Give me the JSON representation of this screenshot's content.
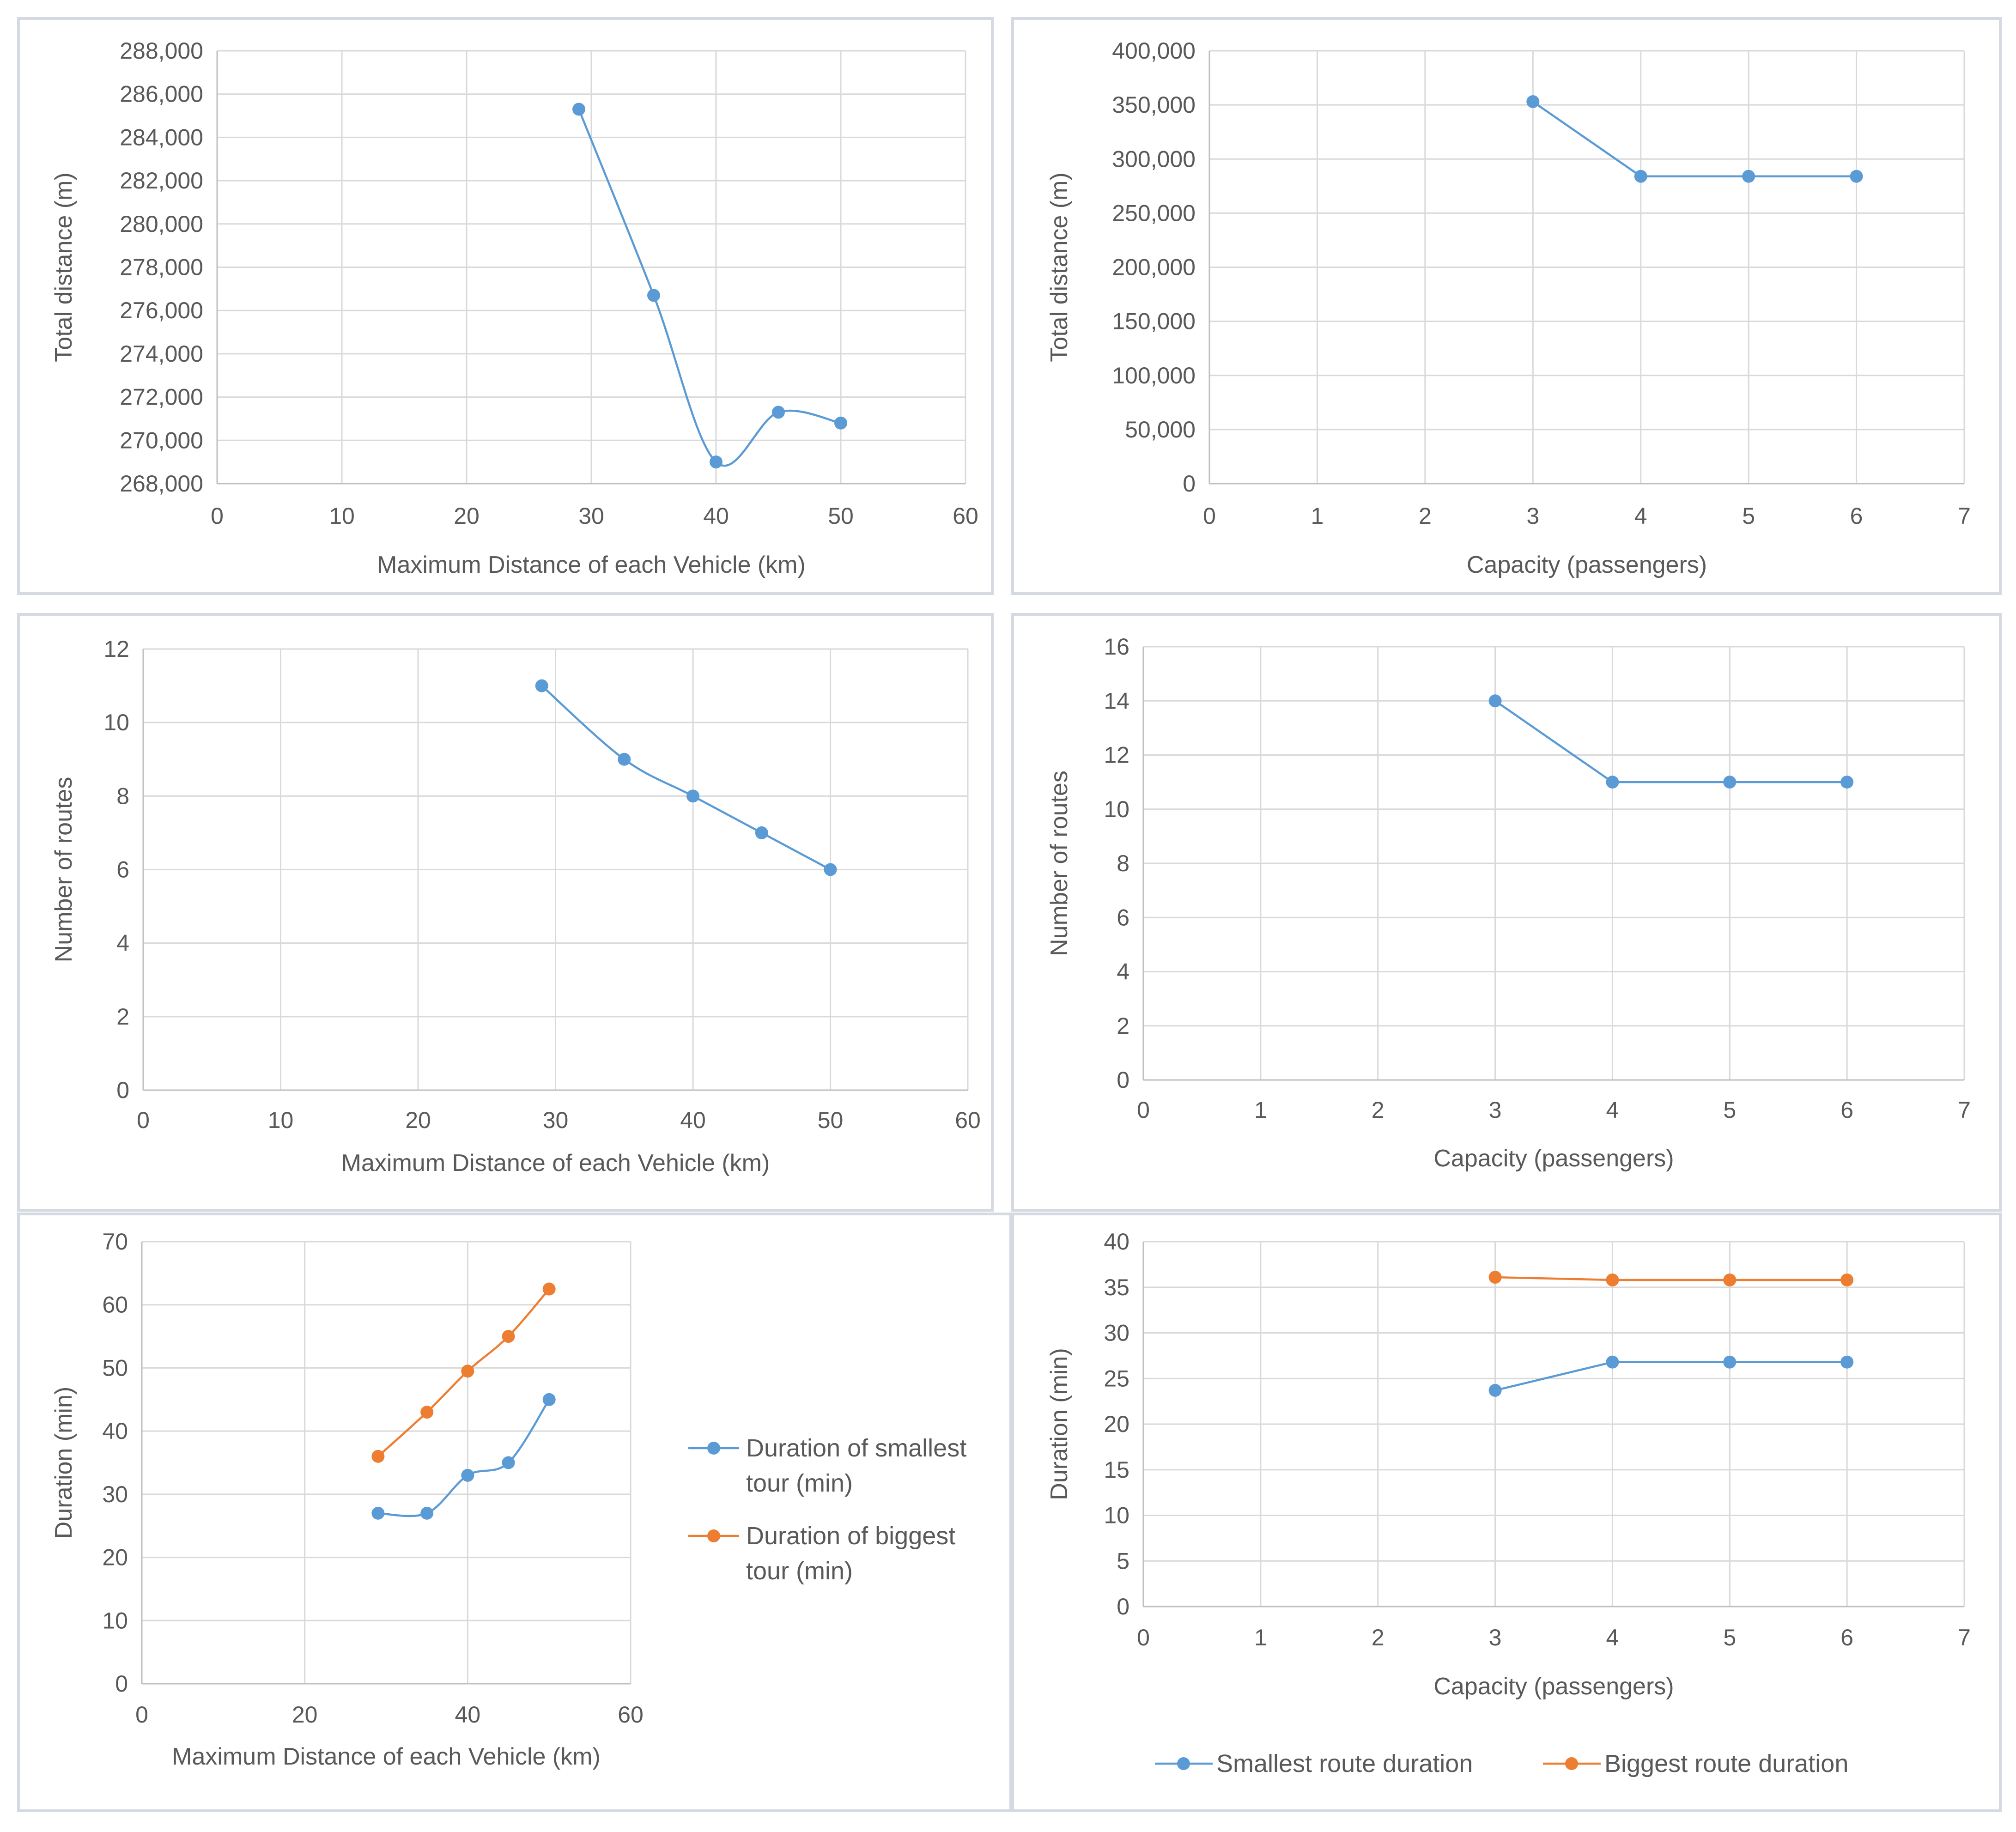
{
  "colors": {
    "series_blue": "#5b9bd5",
    "series_orange": "#ed7d31"
  },
  "chart_data": [
    {
      "type": "line",
      "title": "",
      "xlabel": "Maximum Distance of each Vehicle (km)",
      "ylabel": "Total distance (m)",
      "xlim": [
        0,
        60
      ],
      "ylim": [
        268000,
        288000
      ],
      "xticks": [
        0,
        10,
        20,
        30,
        40,
        50,
        60
      ],
      "yticks": [
        268000,
        270000,
        272000,
        274000,
        276000,
        278000,
        280000,
        282000,
        284000,
        286000,
        288000
      ],
      "grid": true,
      "smooth": true,
      "legend": "none",
      "series": [
        {
          "name": "Total distance",
          "color": "#5b9bd5",
          "x": [
            29,
            35,
            40,
            45,
            50
          ],
          "y": [
            285300,
            276700,
            269000,
            271300,
            270800
          ]
        }
      ]
    },
    {
      "type": "line",
      "title": "",
      "xlabel": "Capacity (passengers)",
      "ylabel": "Total distance (m)",
      "xlim": [
        0,
        7
      ],
      "ylim": [
        0,
        400000
      ],
      "xticks": [
        0,
        1,
        2,
        3,
        4,
        5,
        6,
        7
      ],
      "yticks": [
        0,
        50000,
        100000,
        150000,
        200000,
        250000,
        300000,
        350000,
        400000
      ],
      "grid": true,
      "smooth": false,
      "legend": "none",
      "series": [
        {
          "name": "Total distance",
          "color": "#5b9bd5",
          "x": [
            3,
            4,
            5,
            6
          ],
          "y": [
            353000,
            284000,
            284000,
            284000
          ]
        }
      ]
    },
    {
      "type": "line",
      "title": "",
      "xlabel": "Maximum Distance of each Vehicle (km)",
      "ylabel": "Number of routes",
      "xlim": [
        0,
        60
      ],
      "ylim": [
        0,
        12
      ],
      "xticks": [
        0,
        10,
        20,
        30,
        40,
        50,
        60
      ],
      "yticks": [
        0,
        2,
        4,
        6,
        8,
        10,
        12
      ],
      "grid": true,
      "smooth": true,
      "legend": "none",
      "series": [
        {
          "name": "Number of routes",
          "color": "#5b9bd5",
          "x": [
            29,
            35,
            40,
            45,
            50
          ],
          "y": [
            11,
            9,
            8,
            7,
            6
          ]
        }
      ]
    },
    {
      "type": "line",
      "title": "",
      "xlabel": "Capacity (passengers)",
      "ylabel": "Number of routes",
      "xlim": [
        0,
        7
      ],
      "ylim": [
        0,
        16
      ],
      "xticks": [
        0,
        1,
        2,
        3,
        4,
        5,
        6,
        7
      ],
      "yticks": [
        0,
        2,
        4,
        6,
        8,
        10,
        12,
        14,
        16
      ],
      "grid": true,
      "smooth": false,
      "legend": "none",
      "series": [
        {
          "name": "Number of routes",
          "color": "#5b9bd5",
          "x": [
            3,
            4,
            5,
            6
          ],
          "y": [
            14,
            11,
            11,
            11
          ]
        }
      ]
    },
    {
      "type": "line",
      "title": "",
      "xlabel": "Maximum Distance of each Vehicle (km)",
      "ylabel": "Duration (min)",
      "xlim": [
        0,
        60
      ],
      "ylim": [
        0,
        70
      ],
      "xticks": [
        0,
        20,
        40,
        60
      ],
      "yticks": [
        0,
        10,
        20,
        30,
        40,
        50,
        60,
        70
      ],
      "grid": true,
      "smooth": true,
      "legend": "right",
      "series": [
        {
          "name": "Duration of smallest tour (min)",
          "legend_lines": [
            "Duration of smallest",
            "tour (min)"
          ],
          "color": "#5b9bd5",
          "x": [
            29,
            35,
            40,
            45,
            50
          ],
          "y": [
            27,
            27,
            33,
            35,
            45
          ]
        },
        {
          "name": "Duration of biggest tour (min)",
          "legend_lines": [
            "Duration of biggest",
            "tour (min)"
          ],
          "color": "#ed7d31",
          "x": [
            29,
            35,
            40,
            45,
            50
          ],
          "y": [
            36,
            43,
            49.5,
            55,
            62.5
          ]
        }
      ]
    },
    {
      "type": "line",
      "title": "",
      "xlabel": "Capacity (passengers)",
      "ylabel": "Duration (min)",
      "xlim": [
        0,
        7
      ],
      "ylim": [
        0,
        40
      ],
      "xticks": [
        0,
        1,
        2,
        3,
        4,
        5,
        6,
        7
      ],
      "yticks": [
        0,
        5,
        10,
        15,
        20,
        25,
        30,
        35,
        40
      ],
      "grid": true,
      "smooth": false,
      "legend": "bottom",
      "series": [
        {
          "name": "Smallest route duration",
          "legend_lines": [
            "Smallest route duration"
          ],
          "color": "#5b9bd5",
          "x": [
            3,
            4,
            5,
            6
          ],
          "y": [
            23.7,
            26.8,
            26.8,
            26.8
          ]
        },
        {
          "name": "Biggest route duration",
          "legend_lines": [
            "Biggest route duration"
          ],
          "color": "#ed7d31",
          "x": [
            3,
            4,
            5,
            6
          ],
          "y": [
            36.1,
            35.8,
            35.8,
            35.8
          ]
        }
      ]
    }
  ]
}
